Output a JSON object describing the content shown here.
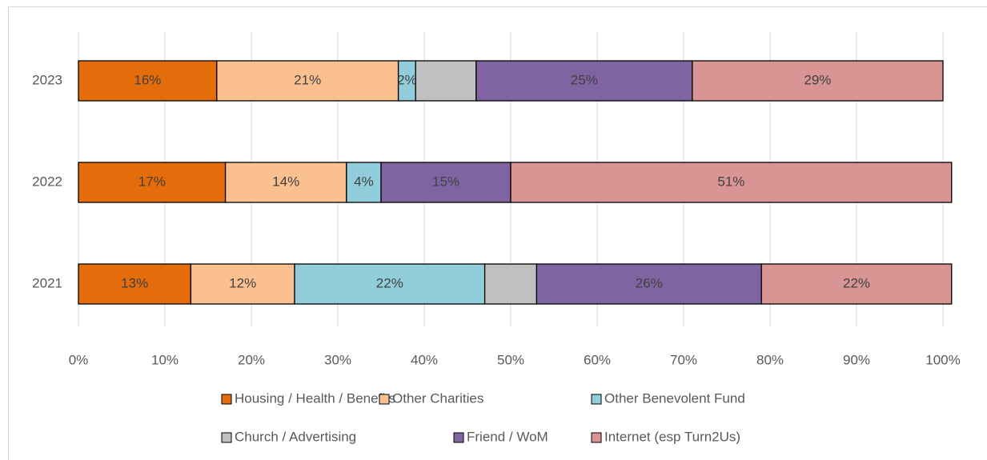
{
  "chart_data": {
    "type": "stacked-bar-horizontal",
    "categories": [
      "2023",
      "2022",
      "2021"
    ],
    "series": [
      {
        "name": "Housing / Health / Benefits",
        "color": "#e46c0a",
        "values": [
          16,
          17,
          13
        ],
        "value_labels": [
          "16%",
          "17%",
          "13%"
        ]
      },
      {
        "name": "Other Charities",
        "color": "#fac090",
        "values": [
          21,
          14,
          12
        ],
        "value_labels": [
          "21%",
          "14%",
          "12%"
        ]
      },
      {
        "name": "Other Benevolent Fund",
        "color": "#92cddc",
        "values": [
          2,
          4,
          22
        ],
        "value_labels": [
          "2%",
          "4%",
          "22%"
        ]
      },
      {
        "name": "Church / Advertising",
        "color": "#c0c0c0",
        "values": [
          7,
          0,
          6
        ],
        "value_labels": [
          null,
          null,
          null
        ]
      },
      {
        "name": "Friend / WoM",
        "color": "#8064a2",
        "values": [
          25,
          15,
          26
        ],
        "value_labels": [
          "25%",
          "15%",
          "26%"
        ]
      },
      {
        "name": "Internet (esp Turn2Us)",
        "color": "#d99594",
        "values": [
          29,
          51,
          22
        ],
        "value_labels": [
          "29%",
          "51%",
          "22%"
        ]
      }
    ],
    "xlim": [
      0,
      100
    ],
    "xticks": [
      {
        "value": 0,
        "label": "0%"
      },
      {
        "value": 10,
        "label": "10%"
      },
      {
        "value": 20,
        "label": "20%"
      },
      {
        "value": 30,
        "label": "30%"
      },
      {
        "value": 40,
        "label": "40%"
      },
      {
        "value": 50,
        "label": "50%"
      },
      {
        "value": 60,
        "label": "60%"
      },
      {
        "value": 70,
        "label": "70%"
      },
      {
        "value": 80,
        "label": "80%"
      },
      {
        "value": 90,
        "label": "90%"
      },
      {
        "value": 100,
        "label": "100%"
      }
    ],
    "grid": true,
    "legend": "bottom"
  }
}
